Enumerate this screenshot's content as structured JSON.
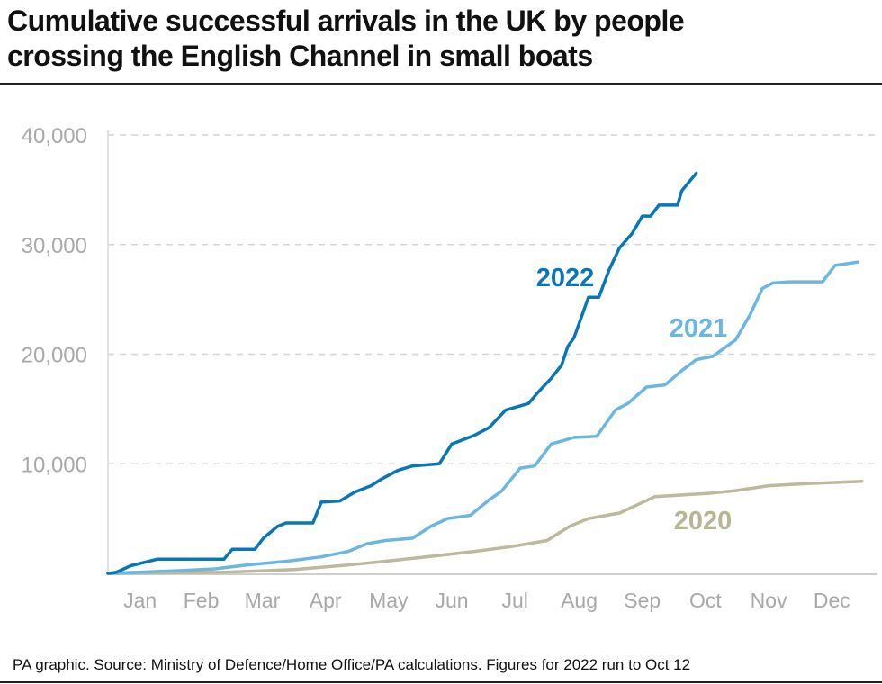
{
  "title_lines": [
    "Cumulative successful arrivals in the UK by people",
    "crossing the English Channel in small boats"
  ],
  "footer": "PA graphic. Source: Ministry of Defence/Home Office/PA calculations. Figures for 2022 run to Oct 12",
  "chart_data": {
    "type": "line",
    "title": "Cumulative successful arrivals in the UK by people crossing the English Channel in small boats",
    "xlabel": "",
    "ylabel": "",
    "x_ticks": [
      "Jan",
      "Feb",
      "Mar",
      "Apr",
      "May",
      "Jun",
      "Jul",
      "Aug",
      "Sep",
      "Oct",
      "Nov",
      "Dec"
    ],
    "y_ticks": [
      "40,000",
      "30,000",
      "20,000",
      "10,000"
    ],
    "ylim": [
      0,
      40000
    ],
    "grid": "horizontal dashed",
    "legend": "inline labels",
    "series": [
      {
        "name": "2022",
        "color": "#0a77b5",
        "label_color": "#0a77b5",
        "x": [
          "01-01",
          "01-05",
          "01-12",
          "01-25",
          "02-26",
          "03-02",
          "03-13",
          "03-17",
          "03-24",
          "03-28",
          "04-10",
          "04-14",
          "04-23",
          "04-30",
          "05-08",
          "05-13",
          "05-21",
          "05-28",
          "06-10",
          "06-16",
          "06-27",
          "07-04",
          "07-12",
          "07-23",
          "07-28",
          "08-03",
          "08-08",
          "08-11",
          "08-14",
          "08-18",
          "08-21",
          "08-26",
          "08-31",
          "09-05",
          "09-11",
          "09-16",
          "09-20",
          "09-24",
          "10-03",
          "10-05",
          "10-12"
        ],
        "y": [
          0,
          100,
          700,
          1300,
          1300,
          2200,
          2200,
          3200,
          4300,
          4600,
          4600,
          6500,
          6600,
          7400,
          8000,
          8600,
          9400,
          9800,
          10000,
          11800,
          12600,
          13300,
          14900,
          15500,
          16600,
          17800,
          19000,
          20700,
          21500,
          23600,
          25200,
          25200,
          27700,
          29700,
          31000,
          32600,
          32600,
          33600,
          33600,
          34900,
          36500
        ]
      },
      {
        "name": "2021",
        "color": "#6bb7e0",
        "label_color": "#6bb7e0",
        "x": [
          "01-01",
          "02-04",
          "02-21",
          "03-11",
          "03-28",
          "04-14",
          "04-27",
          "05-06",
          "05-15",
          "05-28",
          "06-06",
          "06-14",
          "06-25",
          "07-04",
          "07-10",
          "07-19",
          "07-26",
          "08-03",
          "08-14",
          "08-25",
          "09-03",
          "09-09",
          "09-18",
          "09-27",
          "10-05",
          "10-12",
          "10-20",
          "10-31",
          "11-07",
          "11-13",
          "11-18",
          "11-26",
          "12-12",
          "12-18",
          "12-29"
        ],
        "y": [
          0,
          250,
          400,
          800,
          1100,
          1500,
          2000,
          2700,
          3000,
          3200,
          4300,
          5000,
          5300,
          6700,
          7500,
          9600,
          9800,
          11800,
          12400,
          12500,
          14900,
          15500,
          17000,
          17200,
          18500,
          19500,
          19800,
          21300,
          23600,
          26000,
          26500,
          26600,
          26600,
          28100,
          28400
        ]
      },
      {
        "name": "2020",
        "color": "#bdb99c",
        "label_color": "#b8b495",
        "x": [
          "01-01",
          "02-26",
          "04-01",
          "04-23",
          "05-10",
          "06-06",
          "06-27",
          "07-15",
          "08-01",
          "08-12",
          "08-21",
          "09-05",
          "09-14",
          "09-22",
          "10-18",
          "10-31",
          "11-16",
          "12-05",
          "12-31"
        ],
        "y": [
          0,
          100,
          350,
          700,
          1000,
          1550,
          2000,
          2450,
          3000,
          4300,
          5000,
          5500,
          6300,
          7000,
          7300,
          7550,
          8000,
          8200,
          8400
        ]
      }
    ]
  }
}
